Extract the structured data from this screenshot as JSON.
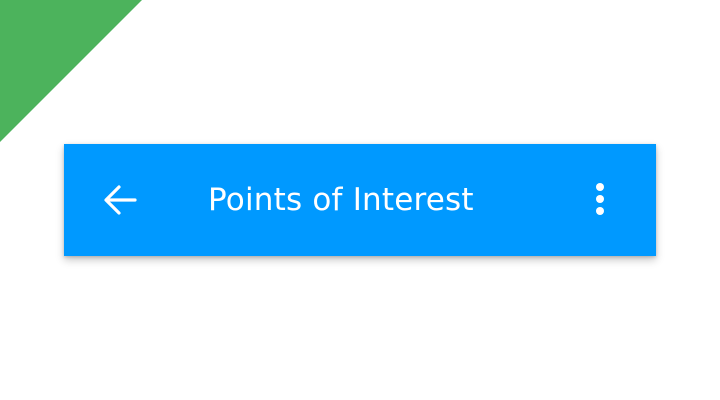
{
  "colors": {
    "appbar_background": "#0099ff",
    "appbar_foreground": "#ffffff",
    "corner_accent": "#4cb35c",
    "page_background": "#ffffff"
  },
  "appbar": {
    "title": "Points of Interest",
    "navigation_icon": "arrow-back-icon",
    "action_icon": "more-vert-icon"
  }
}
